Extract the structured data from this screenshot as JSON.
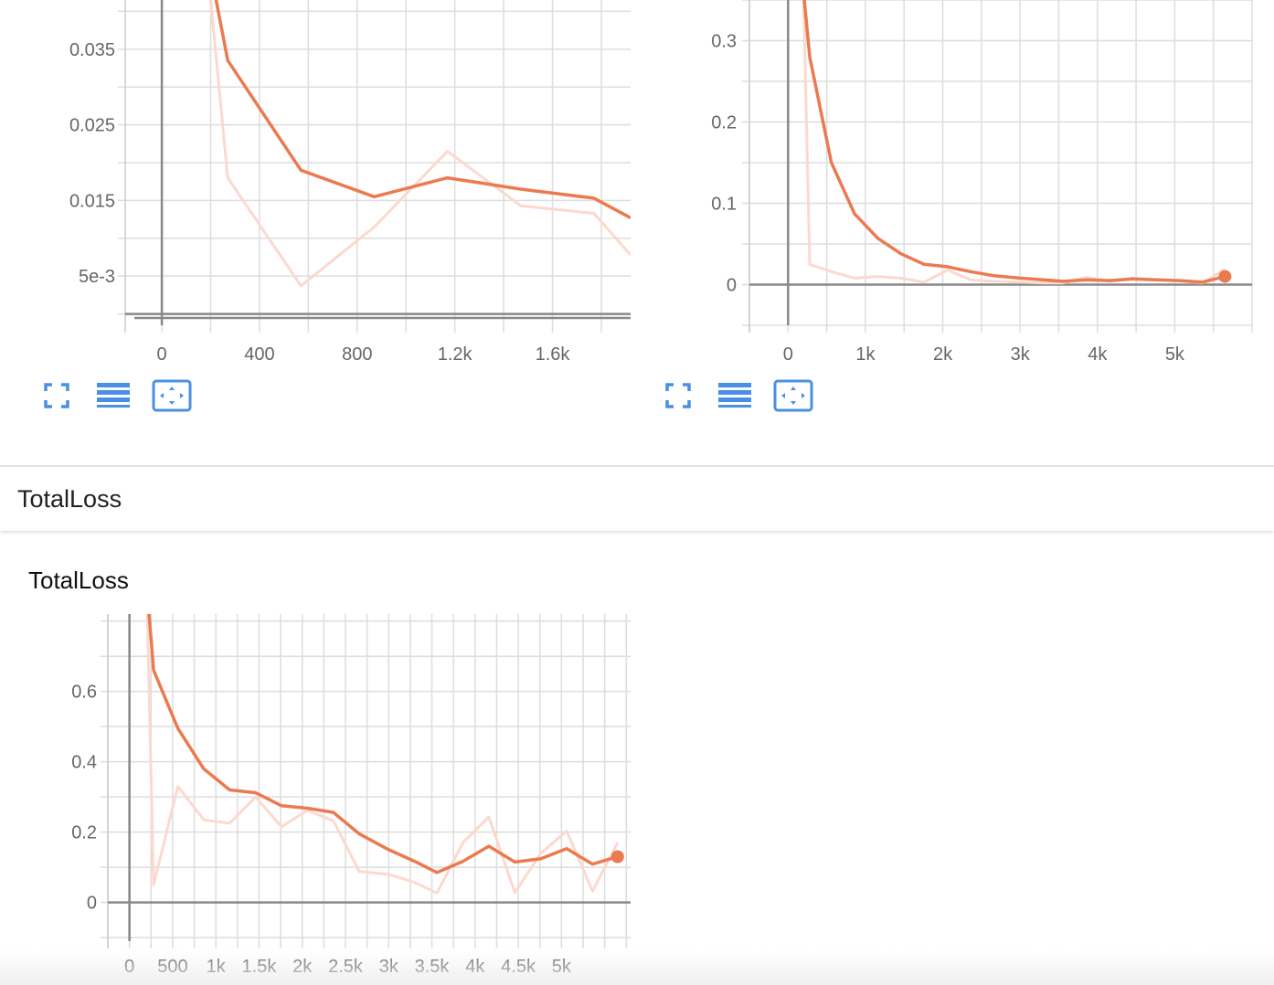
{
  "colors": {
    "accent": "#eb7a50",
    "accent_faded": "#fbd9cf",
    "grid": "#dddddd",
    "axis": "#888888",
    "icon_blue": "#4a90e2"
  },
  "section": {
    "title": "TotalLoss"
  },
  "charts": {
    "top_left": {
      "toolbar": {
        "fullscreen_icon": "fullscreen-icon",
        "data_table_icon": "data-table-icon",
        "fit_domain_icon": "fit-domain-icon"
      }
    },
    "top_right": {
      "toolbar": {
        "fullscreen_icon": "fullscreen-icon",
        "data_table_icon": "data-table-icon",
        "fit_domain_icon": "fit-domain-icon"
      }
    },
    "total_loss": {
      "title": "TotalLoss"
    }
  },
  "chart_data": [
    {
      "type": "line",
      "xlim": [
        -150,
        1920
      ],
      "ylim": [
        -0.0015,
        0.0415
      ],
      "x_ticks": [
        0,
        400,
        800,
        1200,
        1600
      ],
      "x_tick_labels": [
        "0",
        "400",
        "800",
        "1.2k",
        "1.6k"
      ],
      "y_ticks": [
        0.005,
        0.015,
        0.025,
        0.035
      ],
      "y_tick_labels": [
        "5e-3",
        "0.015",
        "0.025",
        "0.035"
      ],
      "grid": true,
      "series": [
        {
          "style": "smoothed",
          "x": [
            100,
            270,
            570,
            870,
            1170,
            1470,
            1770,
            1920
          ],
          "y": [
            0.062,
            0.0335,
            0.019,
            0.0155,
            0.018,
            0.0165,
            0.0153,
            0.0127
          ]
        },
        {
          "style": "raw",
          "x": [
            100,
            270,
            570,
            870,
            1170,
            1470,
            1770,
            1920
          ],
          "y": [
            0.075,
            0.018,
            0.0037,
            0.0115,
            0.0215,
            0.0143,
            0.0133,
            0.0078
          ]
        }
      ]
    },
    {
      "type": "line",
      "xlim": [
        -500,
        6000
      ],
      "ylim": [
        -0.05,
        0.35
      ],
      "x_ticks": [
        0,
        1000,
        2000,
        3000,
        4000,
        5000
      ],
      "x_tick_labels": [
        "0",
        "1k",
        "2k",
        "3k",
        "4k",
        "5k"
      ],
      "y_ticks": [
        0,
        0.1,
        0.2,
        0.3
      ],
      "y_tick_labels": [
        "0",
        "0.1",
        "0.2",
        "0.3"
      ],
      "grid": true,
      "series": [
        {
          "style": "smoothed",
          "x": [
            200,
            280,
            560,
            860,
            1160,
            1460,
            1760,
            2060,
            2360,
            2660,
            3000,
            3300,
            3560,
            3860,
            4160,
            4460,
            4760,
            5060,
            5360,
            5650
          ],
          "y": [
            0.36,
            0.28,
            0.15,
            0.087,
            0.057,
            0.038,
            0.025,
            0.022,
            0.016,
            0.011,
            0.008,
            0.006,
            0.004,
            0.006,
            0.005,
            0.007,
            0.006,
            0.005,
            0.003,
            0.01
          ]
        },
        {
          "style": "raw",
          "x": [
            200,
            280,
            560,
            860,
            1160,
            1460,
            1760,
            2060,
            2360,
            2660,
            3000,
            3300,
            3560,
            3860,
            4160,
            4460,
            4760,
            5060,
            5360,
            5650
          ],
          "y": [
            0.36,
            0.025,
            0.016,
            0.008,
            0.01,
            0.008,
            0.003,
            0.018,
            0.006,
            0.004,
            0.003,
            0.002,
            0.002,
            0.009,
            0.004,
            0.008,
            0.006,
            0.005,
            0.002,
            0.019
          ]
        }
      ]
    },
    {
      "type": "line",
      "title": "TotalLoss",
      "xlim": [
        -250,
        5800
      ],
      "ylim": [
        -0.11,
        0.82
      ],
      "x_ticks": [
        0,
        500,
        1000,
        1500,
        2000,
        2500,
        3000,
        3500,
        4000,
        4500,
        5000
      ],
      "x_tick_labels": [
        "0",
        "500",
        "1k",
        "1.5k",
        "2k",
        "2.5k",
        "3k",
        "3.5k",
        "4k",
        "4.5k",
        "5k"
      ],
      "y_ticks": [
        0,
        0.2,
        0.4,
        0.6
      ],
      "y_tick_labels": [
        "0",
        "0.2",
        "0.4",
        "0.6"
      ],
      "grid": true,
      "series": [
        {
          "style": "smoothed",
          "x": [
            200,
            280,
            560,
            860,
            1160,
            1460,
            1760,
            2060,
            2360,
            2660,
            3000,
            3300,
            3560,
            3860,
            4160,
            4460,
            4760,
            5060,
            5360,
            5650
          ],
          "y": [
            0.9,
            0.66,
            0.495,
            0.38,
            0.32,
            0.312,
            0.275,
            0.268,
            0.256,
            0.195,
            0.15,
            0.117,
            0.085,
            0.117,
            0.16,
            0.115,
            0.124,
            0.153,
            0.109,
            0.13
          ]
        },
        {
          "style": "raw",
          "x": [
            200,
            280,
            560,
            860,
            1160,
            1460,
            1760,
            2060,
            2360,
            2660,
            3000,
            3300,
            3560,
            3860,
            4160,
            4460,
            4760,
            5060,
            5360,
            5650
          ],
          "y": [
            0.9,
            0.05,
            0.33,
            0.235,
            0.225,
            0.3,
            0.215,
            0.262,
            0.232,
            0.088,
            0.08,
            0.057,
            0.027,
            0.17,
            0.243,
            0.028,
            0.14,
            0.203,
            0.032,
            0.17
          ]
        }
      ]
    }
  ]
}
